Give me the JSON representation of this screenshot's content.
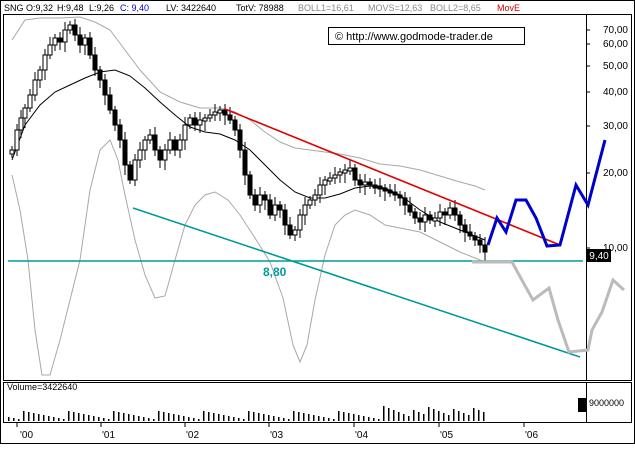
{
  "header": {
    "symbol": "SNG",
    "open": "O:9,32",
    "high": "H:9,48",
    "low": "L:9,26",
    "close": "C: 9,40",
    "lv": "LV: 3422640",
    "totv": "TotV: 78988",
    "boll1": "BOLL1=16,61",
    "movs": "MOVS=12,63",
    "boll2": "BOLL2=8,65",
    "move": "MovE"
  },
  "copyright": "© http://www.godmode-trader.de",
  "price_axis": {
    "ticks": [
      "70,00",
      "60,00",
      "50,00",
      "40,00",
      "30,00",
      "20,00",
      "10,00"
    ],
    "last_price": "9,40"
  },
  "support_label": "8,80",
  "volume": {
    "label": "Volume=3422640",
    "scale": "9000000"
  },
  "x_axis": {
    "ticks": [
      "'00",
      "'01",
      "'02",
      "'03",
      "'04",
      "'05",
      "'06"
    ]
  },
  "colors": {
    "resistance": "#e00000",
    "support": "#009a9a",
    "projection_up": "#0000cc",
    "projection_down": "#bbbbbb",
    "move_label": "#cc0000",
    "band": "#a8a8a8",
    "average": "#000000"
  }
}
